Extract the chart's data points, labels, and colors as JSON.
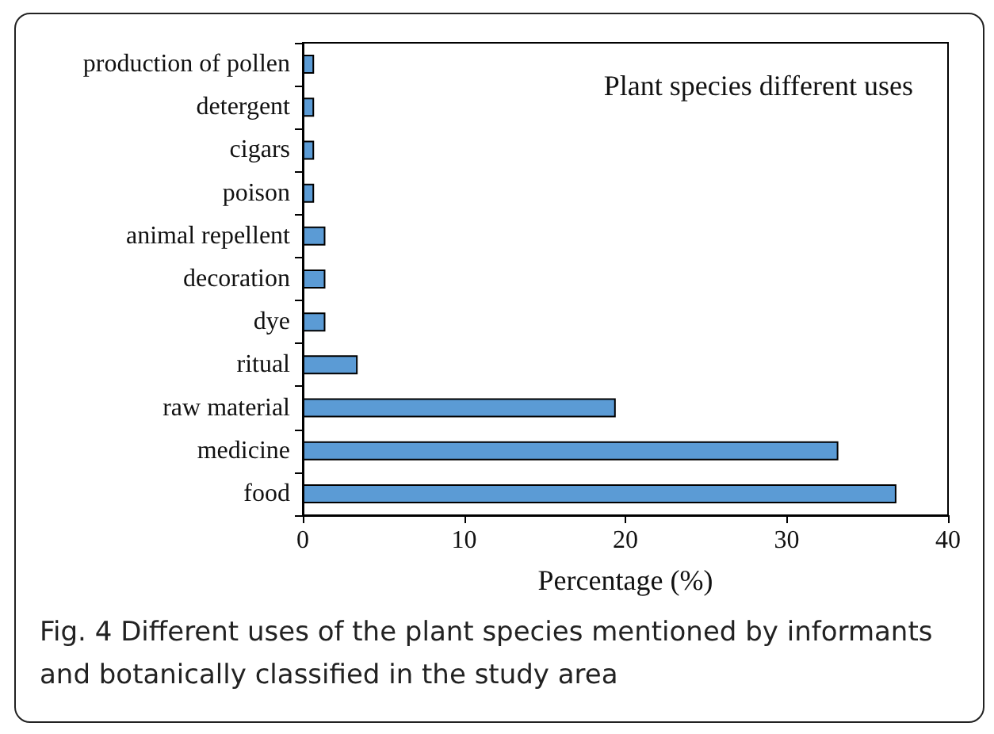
{
  "chart_data": {
    "type": "bar",
    "orientation": "horizontal",
    "title": "Plant species different uses",
    "xlabel": "Percentage (%)",
    "categories": [
      "production of pollen",
      "detergent",
      "cigars",
      "poison",
      "animal repellent",
      "decoration",
      "dye",
      "ritual",
      "raw material",
      "medicine",
      "food"
    ],
    "values": [
      0.7,
      0.7,
      0.7,
      0.7,
      1.4,
      1.4,
      1.4,
      3.4,
      19.4,
      33.2,
      36.8
    ],
    "color": "#5b9bd5",
    "xlim": [
      0,
      40
    ],
    "xticks": [
      0,
      10,
      20,
      30,
      40
    ],
    "grid": false,
    "annotations": [
      "Fig. 4 Different uses of the plant species mentioned by informants and botanically classified in the study area"
    ]
  }
}
